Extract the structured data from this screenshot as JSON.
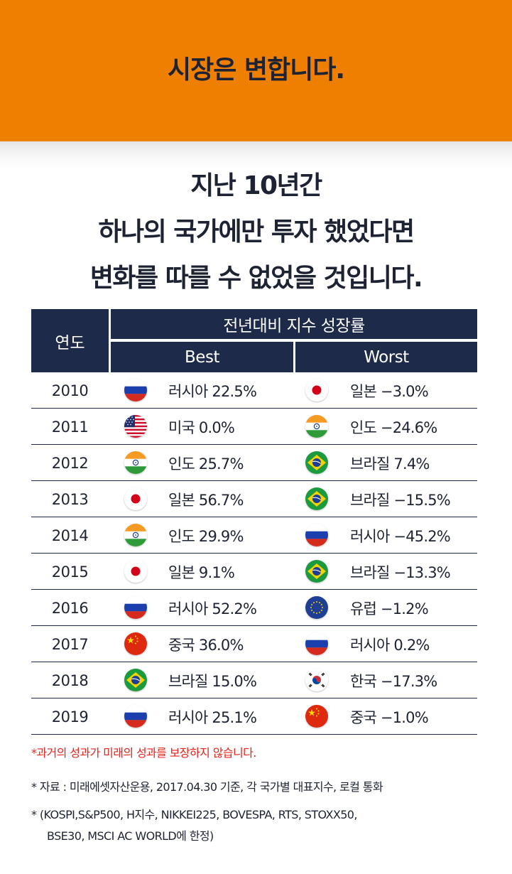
{
  "banner": {
    "title": "시장은 변합니다."
  },
  "headline": {
    "line1": "지난 10년간",
    "line2": "하나의 국가에만 투자 했었다면",
    "line3": "변화를 따를 수 없었을 것입니다."
  },
  "table": {
    "header_year": "연도",
    "header_group": "전년대비 지수 성장률",
    "header_best": "Best",
    "header_worst": "Worst",
    "header_color": "#1d2a4a",
    "rows": [
      {
        "year": "2010",
        "best_flag": "russia-flag-icon",
        "best": "러시아 22.5%",
        "worst_flag": "japan-flag-icon",
        "worst": "일본 −3.0%"
      },
      {
        "year": "2011",
        "best_flag": "usa-flag-icon",
        "best": "미국 0.0%",
        "worst_flag": "india-flag-icon",
        "worst": "인도 −24.6%"
      },
      {
        "year": "2012",
        "best_flag": "india-flag-icon",
        "best": "인도 25.7%",
        "worst_flag": "brazil-flag-icon",
        "worst": "브라질 7.4%"
      },
      {
        "year": "2013",
        "best_flag": "japan-flag-icon",
        "best": "일본 56.7%",
        "worst_flag": "brazil-flag-icon",
        "worst": "브라질 −15.5%"
      },
      {
        "year": "2014",
        "best_flag": "india-flag-icon",
        "best": "인도 29.9%",
        "worst_flag": "russia-flag-icon",
        "worst": "러시아 −45.2%"
      },
      {
        "year": "2015",
        "best_flag": "japan-flag-icon",
        "best": "일본 9.1%",
        "worst_flag": "brazil-flag-icon",
        "worst": "브라질 −13.3%"
      },
      {
        "year": "2016",
        "best_flag": "russia-flag-icon",
        "best": "러시아 52.2%",
        "worst_flag": "eu-flag-icon",
        "worst": "유럽 −1.2%"
      },
      {
        "year": "2017",
        "best_flag": "china-flag-icon",
        "best": "중국 36.0%",
        "worst_flag": "russia-flag-icon",
        "worst": "러시아 0.2%"
      },
      {
        "year": "2018",
        "best_flag": "brazil-flag-icon",
        "best": "브라질 15.0%",
        "worst_flag": "korea-flag-icon",
        "worst": "한국 −17.3%"
      },
      {
        "year": "2019",
        "best_flag": "russia-flag-icon",
        "best": "러시아 25.1%",
        "worst_flag": "china-flag-icon",
        "worst": "중국 −1.0%"
      }
    ]
  },
  "notes": {
    "disclaimer": "*과거의 성과가 미래의 성과를 보장하지 않습니다.",
    "source": "* 자료 : 미래에셋자산운용, 2017.04.30 기준, 각 국가별 대표지수, 로컬 통화",
    "indices_line1": "*   (KOSPI,S&P500, H지수, NIKKEI225, BOVESPA, RTS, STOXX50,",
    "indices_line2": "BSE30, MSCI AC WORLD에 한정)"
  },
  "colors": {
    "banner": "#ee7f00",
    "navy": "#1d2a4a",
    "disclaimer": "#e8231d"
  }
}
